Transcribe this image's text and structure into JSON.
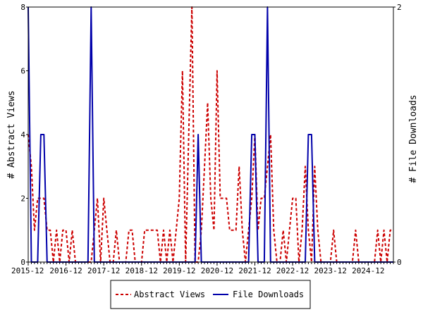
{
  "chart_data": {
    "type": "line",
    "title": "",
    "ylabel": "# Abstract Views",
    "y2label": "# File Downloads",
    "ylim": [
      0,
      8
    ],
    "y2lim": [
      0,
      2
    ],
    "yticks": [
      0,
      2,
      4,
      6,
      8
    ],
    "y2ticks": [
      0,
      2
    ],
    "x_tick_labels": [
      "2015-12",
      "2016-12",
      "2017-12",
      "2018-12",
      "2019-12",
      "2020-12",
      "2021-12",
      "2022-12",
      "2023-12",
      "2024-12"
    ],
    "x_range_months": [
      0,
      116
    ],
    "x_start_label": "2015-12",
    "grid": false,
    "legend_position": "bottom",
    "series": [
      {
        "name": "Abstract Views",
        "axis": "left",
        "color": "#cc0000",
        "style": "dashed",
        "values": [
          4,
          3,
          1,
          2,
          2,
          2,
          1,
          1,
          0,
          1,
          0,
          1,
          1,
          0,
          1,
          0,
          0,
          0,
          0,
          0,
          0,
          1,
          2,
          0,
          2,
          1,
          0,
          0,
          1,
          0,
          0,
          0,
          1,
          1,
          0,
          0,
          0,
          1,
          1,
          1,
          1,
          1,
          0,
          1,
          0,
          1,
          0,
          1,
          2,
          6,
          0,
          4,
          8,
          0,
          0,
          1,
          3,
          5,
          2,
          1,
          6,
          2,
          2,
          2,
          1,
          1,
          1,
          3,
          1,
          0,
          1,
          2,
          4,
          1,
          2,
          2,
          3,
          4,
          1,
          0,
          0,
          1,
          0,
          1,
          2,
          2,
          0,
          1,
          3,
          1,
          0,
          3,
          1,
          0,
          0,
          0,
          0,
          1,
          0,
          0,
          0,
          0,
          0,
          0,
          1,
          0,
          0,
          0,
          0,
          0,
          0,
          1,
          0,
          1,
          0,
          1,
          1
        ]
      },
      {
        "name": "File Downloads",
        "axis": "right",
        "color": "#0000aa",
        "style": "solid",
        "values": [
          2,
          0,
          0,
          0,
          1,
          1,
          0,
          0,
          0,
          0,
          0,
          0,
          0,
          0,
          0,
          0,
          0,
          0,
          0,
          0,
          2,
          0,
          0,
          0,
          0,
          0,
          0,
          0,
          0,
          0,
          0,
          0,
          0,
          0,
          0,
          0,
          0,
          0,
          0,
          0,
          0,
          0,
          0,
          0,
          0,
          0,
          0,
          0,
          0,
          0,
          0,
          0,
          0,
          0,
          1,
          0,
          0,
          0,
          0,
          0,
          0,
          0,
          0,
          0,
          0,
          0,
          0,
          0,
          0,
          0,
          0,
          1,
          1,
          0,
          0,
          0,
          2,
          0,
          0,
          0,
          0,
          0,
          0,
          0,
          0,
          0,
          0,
          0,
          0,
          1,
          1,
          0,
          0,
          0,
          0,
          0,
          0,
          0,
          0,
          0,
          0,
          0,
          0,
          0,
          0,
          0,
          0,
          0,
          0,
          0,
          0,
          0,
          0,
          0,
          0,
          0,
          0
        ]
      }
    ]
  }
}
